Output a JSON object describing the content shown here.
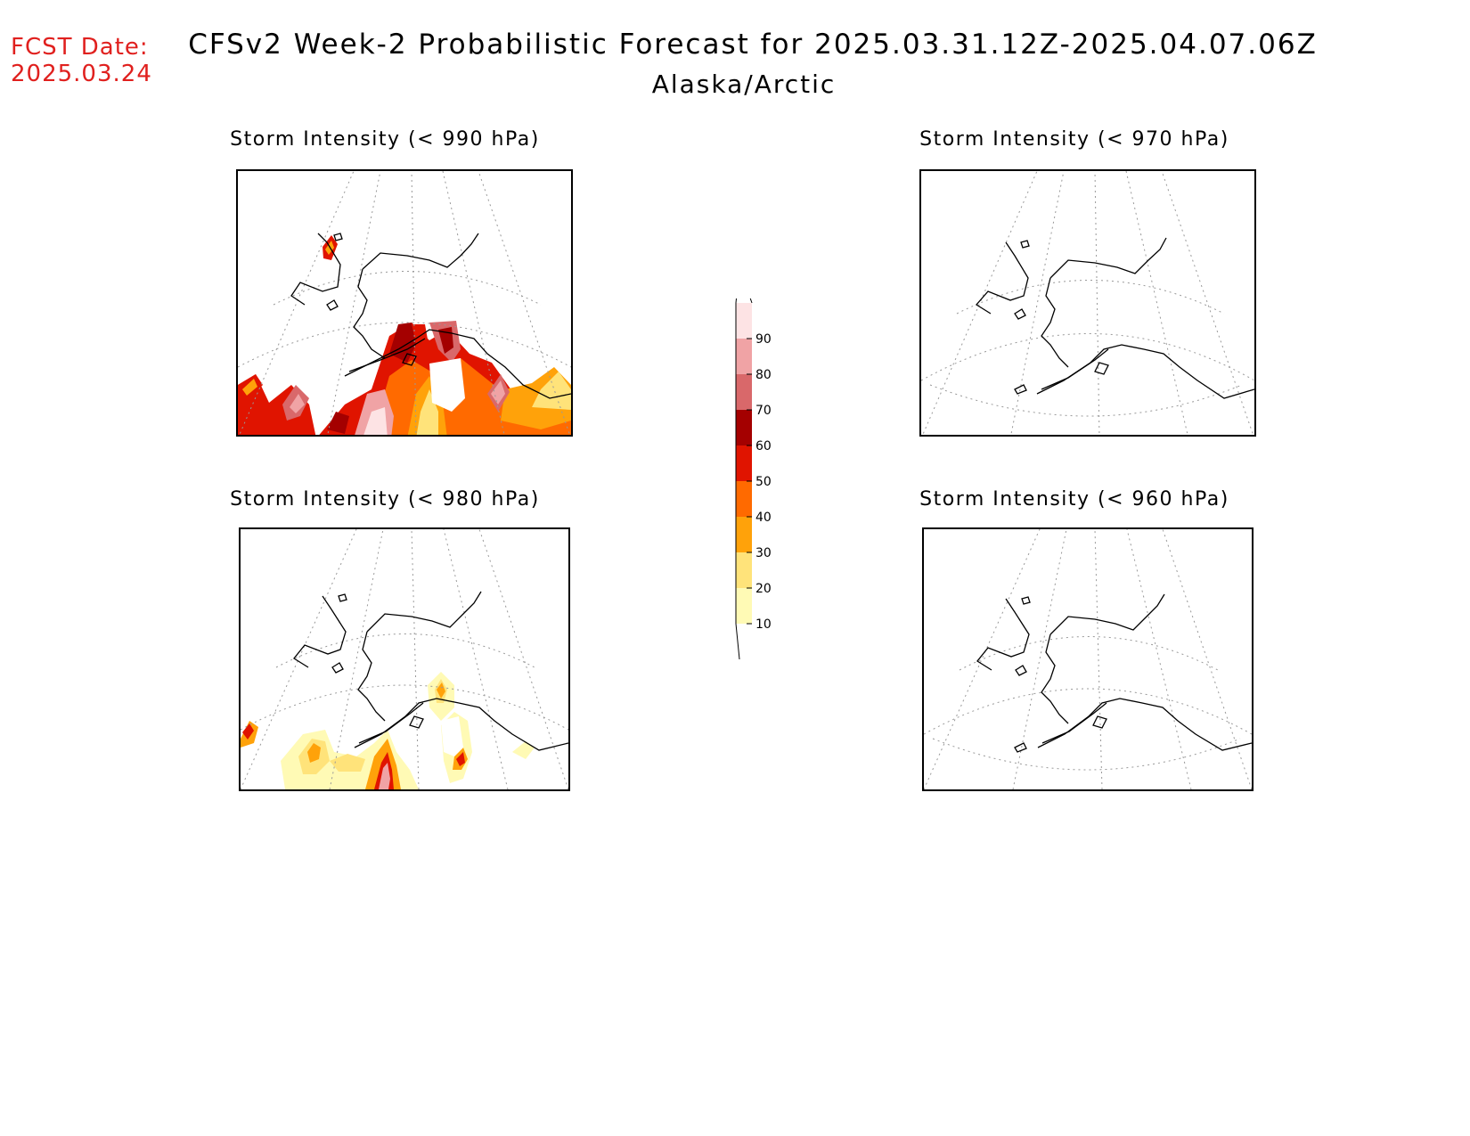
{
  "header": {
    "fcst_label": "FCST Date:",
    "fcst_date": "2025.03.24",
    "title": "CFSv2 Week-2 Probabilistic Forecast for 2025.03.31.12Z-2025.04.07.06Z",
    "region": "Alaska/Arctic"
  },
  "panels": [
    {
      "id": "p990",
      "title": "Storm Intensity (< 990 hPa)",
      "has_data": true
    },
    {
      "id": "p970",
      "title": "Storm Intensity (< 970 hPa)",
      "has_data": false
    },
    {
      "id": "p980",
      "title": "Storm Intensity (< 980 hPa)",
      "has_data": true
    },
    {
      "id": "p960",
      "title": "Storm Intensity (< 960 hPa)",
      "has_data": false
    }
  ],
  "legend": {
    "levels": [
      "10",
      "20",
      "30",
      "40",
      "50",
      "60",
      "70",
      "80",
      "90"
    ],
    "colors": [
      "#fffab5",
      "#ffe37a",
      "#ffa20a",
      "#ff6a00",
      "#e01400",
      "#a40000",
      "#d9686a",
      "#f0a3a5",
      "#fde3e4"
    ]
  }
}
